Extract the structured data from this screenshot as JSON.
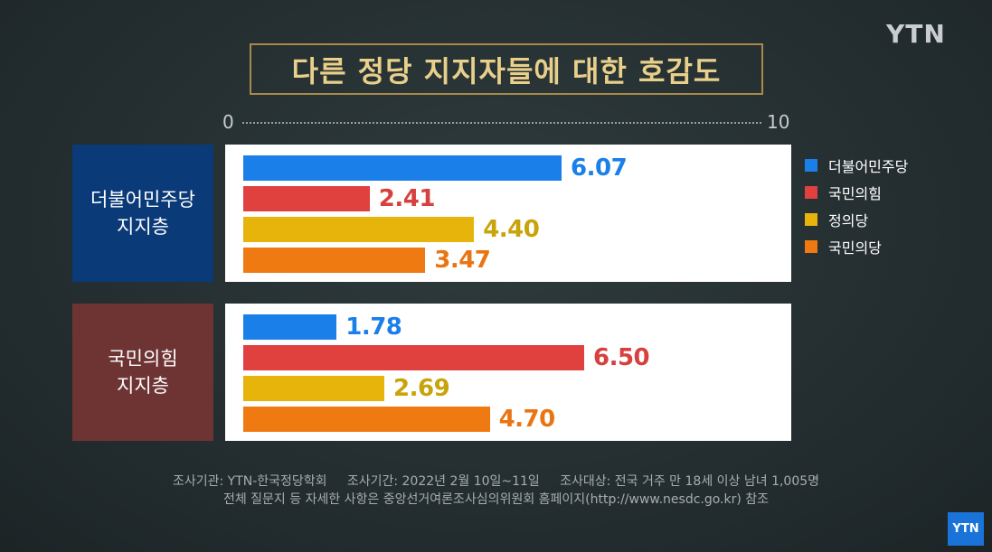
{
  "header": {
    "title": "다른 정당 지지자들에 대한 호감도",
    "logo": "YTN"
  },
  "scale": {
    "min_label": "0",
    "max_label": "10"
  },
  "legend": [
    {
      "label": "더불어민주당",
      "color": "#1a7fe8"
    },
    {
      "label": "국민의힘",
      "color": "#e0403e"
    },
    {
      "label": "정의당",
      "color": "#e6b40b"
    },
    {
      "label": "국민의당",
      "color": "#f07a12"
    }
  ],
  "chart_data": {
    "type": "bar",
    "orientation": "horizontal",
    "title": "다른 정당 지지자들에 대한 호감도",
    "xlim": [
      0,
      10
    ],
    "groups": [
      {
        "label": "더불어민주당\n지지층",
        "label_color": "#0b3a78",
        "series": [
          {
            "name": "더불어민주당",
            "value": 6.07,
            "display": "6.07"
          },
          {
            "name": "국민의힘",
            "value": 2.41,
            "display": "2.41"
          },
          {
            "name": "정의당",
            "value": 4.4,
            "display": "4.40"
          },
          {
            "name": "국민의당",
            "value": 3.47,
            "display": "3.47"
          }
        ]
      },
      {
        "label": "국민의힘\n지지층",
        "label_color": "#6e3434",
        "series": [
          {
            "name": "더불어민주당",
            "value": 1.78,
            "display": "1.78"
          },
          {
            "name": "국민의힘",
            "value": 6.5,
            "display": "6.50"
          },
          {
            "name": "정의당",
            "value": 2.69,
            "display": "2.69"
          },
          {
            "name": "국민의당",
            "value": 4.7,
            "display": "4.70"
          }
        ]
      }
    ],
    "legend_position": "right"
  },
  "footer": {
    "line1": "조사기관: YTN-한국정당학회     조사기간: 2022년 2월 10일~11일     조사대상: 전국 거주 만 18세 이상 남녀 1,005명",
    "line2": "전체 질문지 등 자세한 사항은 중앙선거여론조사심의위원회 홈페이지(http://www.nesdc.go.kr) 참조"
  },
  "corner_logo": "YTN"
}
